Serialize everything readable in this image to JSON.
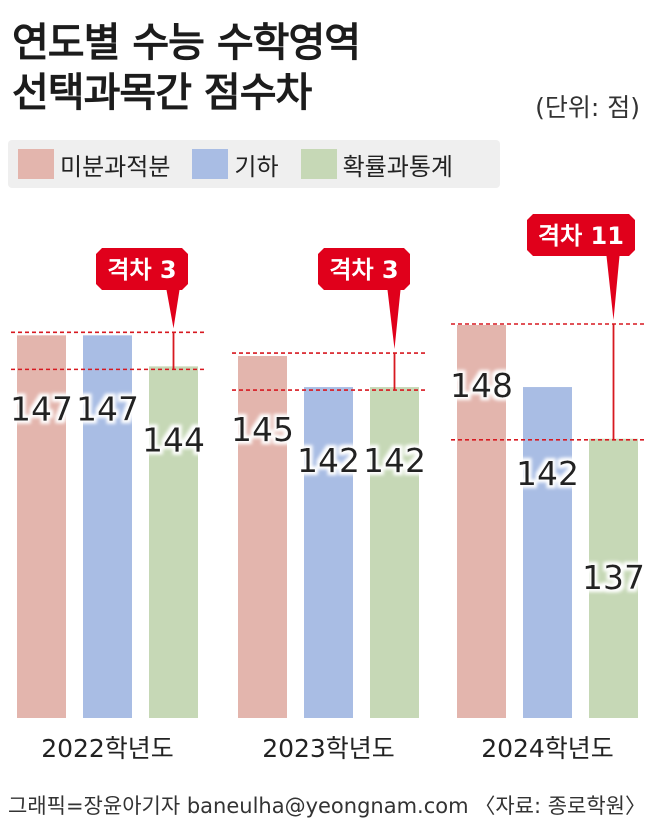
{
  "header": {
    "title_line1": "연도별 수능 수학영역",
    "title_line2": "선택과목간 점수차",
    "unit": "(단위: 점)"
  },
  "legend": [
    {
      "label": "미분과적분",
      "color": "#e3b5ad"
    },
    {
      "label": "기하",
      "color": "#a9bde4"
    },
    {
      "label": "확률과통계",
      "color": "#c6d8b6"
    }
  ],
  "chart_data": {
    "type": "bar",
    "categories": [
      "2022학년도",
      "2023학년도",
      "2024학년도"
    ],
    "series": [
      {
        "name": "미분과적분",
        "values": [
          147,
          145,
          148
        ]
      },
      {
        "name": "기하",
        "values": [
          147,
          142,
          142
        ]
      },
      {
        "name": "확률과통계",
        "values": [
          144,
          142,
          137
        ]
      }
    ],
    "gap_labels": [
      "격차 3",
      "격차 3",
      "격차 11"
    ],
    "ylim": [
      0,
      148
    ]
  },
  "colors": {
    "callout": "#e0001b",
    "gap_line": "#d71920",
    "bars": [
      "#e3b5ad",
      "#a9bde4",
      "#c6d8b6"
    ]
  },
  "footer": {
    "credit": "그래픽=장윤아기자 baneulha@yeongnam.com",
    "source": "〈자료: 종로학원〉"
  }
}
